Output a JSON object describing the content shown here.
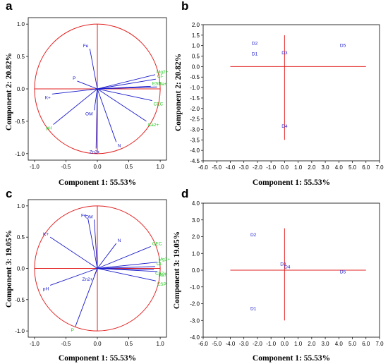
{
  "chart_data": [
    {
      "panel": "a",
      "type": "scatter",
      "subtype": "loading-plot",
      "xlabel": "Component 1: 55.53%",
      "ylabel": "Component 2: 20.82%",
      "xlim": [
        -1.1,
        1.1
      ],
      "ylim": [
        -1.1,
        1.1
      ],
      "xticks": [
        "-1.0",
        "-0.5",
        "0.0",
        "0.5",
        "1.0"
      ],
      "yticks": [
        "-1.0",
        "-0.5",
        "0.0",
        "0.5",
        "1.0"
      ],
      "circle": true,
      "vectors": [
        {
          "label": "Fe",
          "x": -0.12,
          "y": 0.62,
          "group": "blue"
        },
        {
          "label": "P",
          "x": -0.32,
          "y": 0.12,
          "group": "blue"
        },
        {
          "label": "K+",
          "x": -0.72,
          "y": -0.08,
          "group": "blue"
        },
        {
          "label": "OM",
          "x": -0.05,
          "y": -0.33,
          "group": "blue"
        },
        {
          "label": "Zn2+",
          "x": -0.02,
          "y": -0.92,
          "group": "blue"
        },
        {
          "label": "N",
          "x": 0.3,
          "y": -0.82,
          "group": "blue"
        },
        {
          "label": "pH",
          "x": -0.7,
          "y": -0.55,
          "group": "green"
        },
        {
          "label": "Mg2+",
          "x": 0.92,
          "y": 0.22,
          "group": "green"
        },
        {
          "label": "Cl-",
          "x": 0.93,
          "y": 0.15,
          "group": "green"
        },
        {
          "label": "ESP",
          "x": 0.85,
          "y": 0.04,
          "group": "green"
        },
        {
          "label": "Na+",
          "x": 0.95,
          "y": 0.03,
          "group": "green"
        },
        {
          "label": "CEC",
          "x": 0.87,
          "y": -0.18,
          "group": "green"
        },
        {
          "label": "Ca2+",
          "x": 0.78,
          "y": -0.5,
          "group": "green"
        }
      ]
    },
    {
      "panel": "b",
      "type": "scatter",
      "xlabel": "Component 1: 55.53%",
      "ylabel": "Component 2: 20.82%",
      "xlim": [
        -6.0,
        7.0
      ],
      "ylim": [
        -4.5,
        2.0
      ],
      "xticks": [
        "-6.0",
        "-5.0",
        "-4.0",
        "-3.0",
        "-2.0",
        "-1.0",
        "0.0",
        "1.0",
        "2.0",
        "3.0",
        "4.0",
        "5.0",
        "6.0",
        "7.0"
      ],
      "yticks": [
        "2.0",
        "1.5",
        "1.0",
        "0.5",
        "0.0",
        "-0.5",
        "-1.0",
        "-1.5",
        "-2.0",
        "-2.5",
        "-3.0",
        "-3.5",
        "-4.0",
        "-4.5"
      ],
      "crosshair": {
        "x": [
          -4.0,
          6.0
        ],
        "y": [
          -3.5,
          1.5
        ]
      },
      "points": [
        {
          "label": "D1",
          "x": -2.2,
          "y": 0.6
        },
        {
          "label": "D2",
          "x": -2.2,
          "y": 1.1
        },
        {
          "label": "D3",
          "x": 0.0,
          "y": 0.65
        },
        {
          "label": "D4",
          "x": 0.0,
          "y": -2.85
        },
        {
          "label": "D5",
          "x": 4.3,
          "y": 1.0
        }
      ]
    },
    {
      "panel": "c",
      "type": "scatter",
      "subtype": "loading-plot",
      "xlabel": "Component 1: 55.53%",
      "ylabel": "Component 3: 19.05%",
      "xlim": [
        -1.1,
        1.1
      ],
      "ylim": [
        -1.1,
        1.1
      ],
      "xticks": [
        "-1.0",
        "-0.5",
        "0.0",
        "0.5",
        "1.0"
      ],
      "yticks": [
        "-1.0",
        "-0.5",
        "0.0",
        "0.5",
        "1.0"
      ],
      "circle": true,
      "vectors": [
        {
          "label": "Fe",
          "x": -0.15,
          "y": 0.8,
          "group": "blue"
        },
        {
          "label": "OM",
          "x": -0.05,
          "y": 0.78,
          "group": "blue"
        },
        {
          "label": "K+",
          "x": -0.75,
          "y": 0.5,
          "group": "blue"
        },
        {
          "label": "N",
          "x": 0.3,
          "y": 0.4,
          "group": "blue"
        },
        {
          "label": "Zn2+",
          "x": -0.05,
          "y": -0.12,
          "group": "blue"
        },
        {
          "label": "pH",
          "x": -0.75,
          "y": -0.27,
          "group": "blue"
        },
        {
          "label": "P",
          "x": -0.35,
          "y": -0.93,
          "group": "green"
        },
        {
          "label": "CEC",
          "x": 0.85,
          "y": 0.35,
          "group": "green"
        },
        {
          "label": "Mg2+",
          "x": 0.95,
          "y": 0.1,
          "group": "green"
        },
        {
          "label": "Cl-",
          "x": 0.92,
          "y": 0.03,
          "group": "green"
        },
        {
          "label": "Ca2+",
          "x": 0.9,
          "y": -0.02,
          "group": "green"
        },
        {
          "label": "Na+",
          "x": 0.95,
          "y": -0.05,
          "group": "green"
        },
        {
          "label": "ESP",
          "x": 0.93,
          "y": -0.2,
          "group": "green"
        }
      ]
    },
    {
      "panel": "d",
      "type": "scatter",
      "xlabel": "Component 1: 55.53%",
      "ylabel": "Component 3: 19.05%",
      "xlim": [
        -6.0,
        7.0
      ],
      "ylim": [
        -4.0,
        4.0
      ],
      "xticks": [
        "-6.0",
        "-5.0",
        "-4.0",
        "-3.0",
        "-2.0",
        "-1.0",
        "0.0",
        "1.0",
        "2.0",
        "3.0",
        "4.0",
        "5.0",
        "6.0",
        "7.0"
      ],
      "yticks": [
        "4.0",
        "3.0",
        "2.0",
        "1.0",
        "0.0",
        "-1.0",
        "-2.0",
        "-3.0",
        "-4.0"
      ],
      "crosshair": {
        "x": [
          -4.0,
          6.0
        ],
        "y": [
          -3.0,
          2.5
        ]
      },
      "points": [
        {
          "label": "D1",
          "x": -2.3,
          "y": -2.3
        },
        {
          "label": "D2",
          "x": -2.3,
          "y": 2.1
        },
        {
          "label": "D3",
          "x": -0.1,
          "y": 0.35
        },
        {
          "label": "D4",
          "x": 0.2,
          "y": 0.2
        },
        {
          "label": "D5",
          "x": 4.3,
          "y": -0.1
        }
      ]
    }
  ],
  "colors": {
    "axis_red": "#e22222",
    "vector_blue": "#1a1acc",
    "label_green": "#22cc22",
    "frame": "#000000"
  }
}
